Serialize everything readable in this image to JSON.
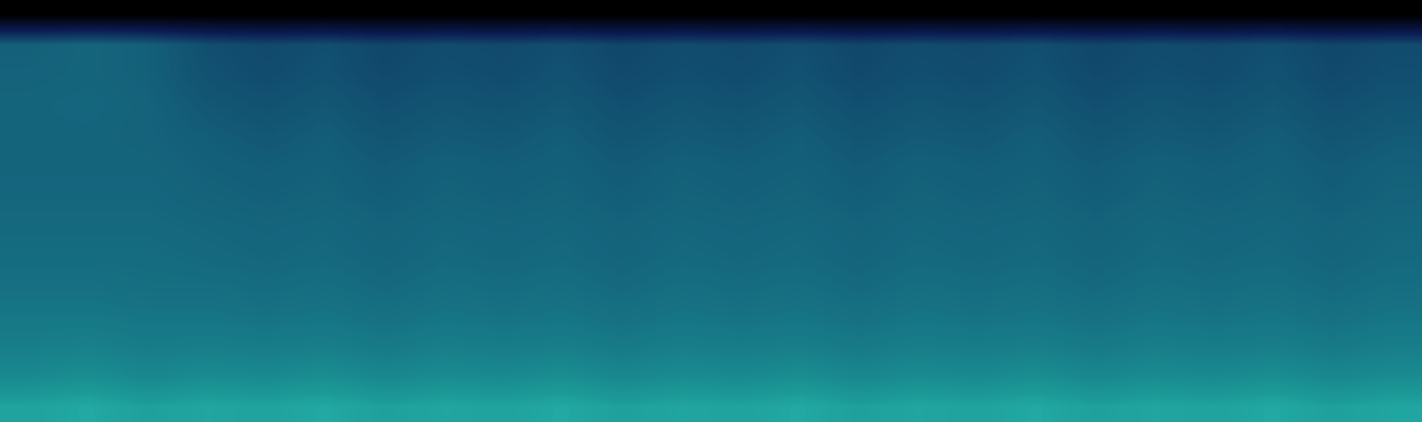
{
  "chart_data": {
    "type": "heatmap",
    "tick_labels": false,
    "color_range": [
      0,
      1
    ],
    "cells": [
      [
        0.0,
        0.0,
        0.0,
        0.0,
        0.0,
        0.0,
        0.0,
        0.0,
        0.0,
        0.0,
        0.0,
        0.0,
        0.0,
        0.0,
        0.0,
        0.0,
        0.0,
        0.0,
        0.0,
        0.0,
        0.0,
        0.0,
        0.0,
        0.0
      ],
      [
        0.5,
        0.52,
        0.5,
        0.44,
        0.42,
        0.44,
        0.41,
        0.43,
        0.42,
        0.44,
        0.41,
        0.43,
        0.42,
        0.44,
        0.41,
        0.43,
        0.42,
        0.44,
        0.41,
        0.43,
        0.42,
        0.44,
        0.41,
        0.43
      ],
      [
        0.51,
        0.52,
        0.5,
        0.45,
        0.43,
        0.45,
        0.42,
        0.44,
        0.43,
        0.45,
        0.42,
        0.44,
        0.43,
        0.45,
        0.42,
        0.44,
        0.43,
        0.45,
        0.42,
        0.44,
        0.43,
        0.45,
        0.42,
        0.44
      ],
      [
        0.52,
        0.53,
        0.51,
        0.47,
        0.45,
        0.47,
        0.44,
        0.46,
        0.45,
        0.47,
        0.44,
        0.46,
        0.45,
        0.47,
        0.44,
        0.46,
        0.45,
        0.47,
        0.44,
        0.46,
        0.45,
        0.47,
        0.44,
        0.46
      ],
      [
        0.52,
        0.52,
        0.51,
        0.49,
        0.47,
        0.49,
        0.46,
        0.48,
        0.47,
        0.49,
        0.46,
        0.48,
        0.47,
        0.49,
        0.46,
        0.48,
        0.47,
        0.49,
        0.46,
        0.48,
        0.47,
        0.49,
        0.46,
        0.48
      ],
      [
        0.52,
        0.52,
        0.52,
        0.5,
        0.49,
        0.5,
        0.48,
        0.5,
        0.49,
        0.5,
        0.48,
        0.5,
        0.49,
        0.5,
        0.48,
        0.5,
        0.49,
        0.5,
        0.48,
        0.5,
        0.49,
        0.5,
        0.48,
        0.5
      ],
      [
        0.53,
        0.53,
        0.53,
        0.51,
        0.5,
        0.51,
        0.49,
        0.51,
        0.5,
        0.51,
        0.49,
        0.51,
        0.5,
        0.51,
        0.49,
        0.51,
        0.5,
        0.51,
        0.49,
        0.51,
        0.5,
        0.51,
        0.49,
        0.51
      ],
      [
        0.54,
        0.54,
        0.54,
        0.53,
        0.52,
        0.53,
        0.51,
        0.53,
        0.52,
        0.53,
        0.51,
        0.53,
        0.52,
        0.53,
        0.51,
        0.53,
        0.52,
        0.53,
        0.51,
        0.53,
        0.52,
        0.53,
        0.51,
        0.53
      ],
      [
        0.55,
        0.55,
        0.55,
        0.54,
        0.53,
        0.54,
        0.52,
        0.54,
        0.53,
        0.54,
        0.52,
        0.54,
        0.53,
        0.54,
        0.52,
        0.54,
        0.53,
        0.54,
        0.52,
        0.54,
        0.53,
        0.54,
        0.52,
        0.54
      ],
      [
        0.57,
        0.57,
        0.56,
        0.56,
        0.55,
        0.56,
        0.54,
        0.56,
        0.55,
        0.56,
        0.54,
        0.56,
        0.55,
        0.56,
        0.54,
        0.56,
        0.55,
        0.56,
        0.54,
        0.56,
        0.55,
        0.56,
        0.54,
        0.56
      ],
      [
        0.6,
        0.6,
        0.59,
        0.59,
        0.58,
        0.59,
        0.57,
        0.59,
        0.58,
        0.59,
        0.57,
        0.59,
        0.58,
        0.59,
        0.57,
        0.59,
        0.58,
        0.59,
        0.57,
        0.59,
        0.58,
        0.59,
        0.57,
        0.59
      ],
      [
        0.63,
        0.64,
        0.62,
        0.63,
        0.62,
        0.63,
        0.61,
        0.63,
        0.62,
        0.63,
        0.61,
        0.63,
        0.62,
        0.63,
        0.61,
        0.63,
        0.62,
        0.63,
        0.61,
        0.63,
        0.62,
        0.63,
        0.61,
        0.63
      ],
      [
        0.68,
        0.7,
        0.67,
        0.69,
        0.68,
        0.7,
        0.67,
        0.69,
        0.68,
        0.7,
        0.67,
        0.69,
        0.68,
        0.7,
        0.67,
        0.69,
        0.68,
        0.7,
        0.67,
        0.69,
        0.68,
        0.7,
        0.67,
        0.69
      ],
      [
        0.78,
        0.8,
        0.77,
        0.79,
        0.78,
        0.8,
        0.77,
        0.79,
        0.78,
        0.8,
        0.77,
        0.79,
        0.78,
        0.8,
        0.77,
        0.79,
        0.78,
        0.8,
        0.77,
        0.79,
        0.78,
        0.8,
        0.77,
        0.79
      ]
    ]
  }
}
